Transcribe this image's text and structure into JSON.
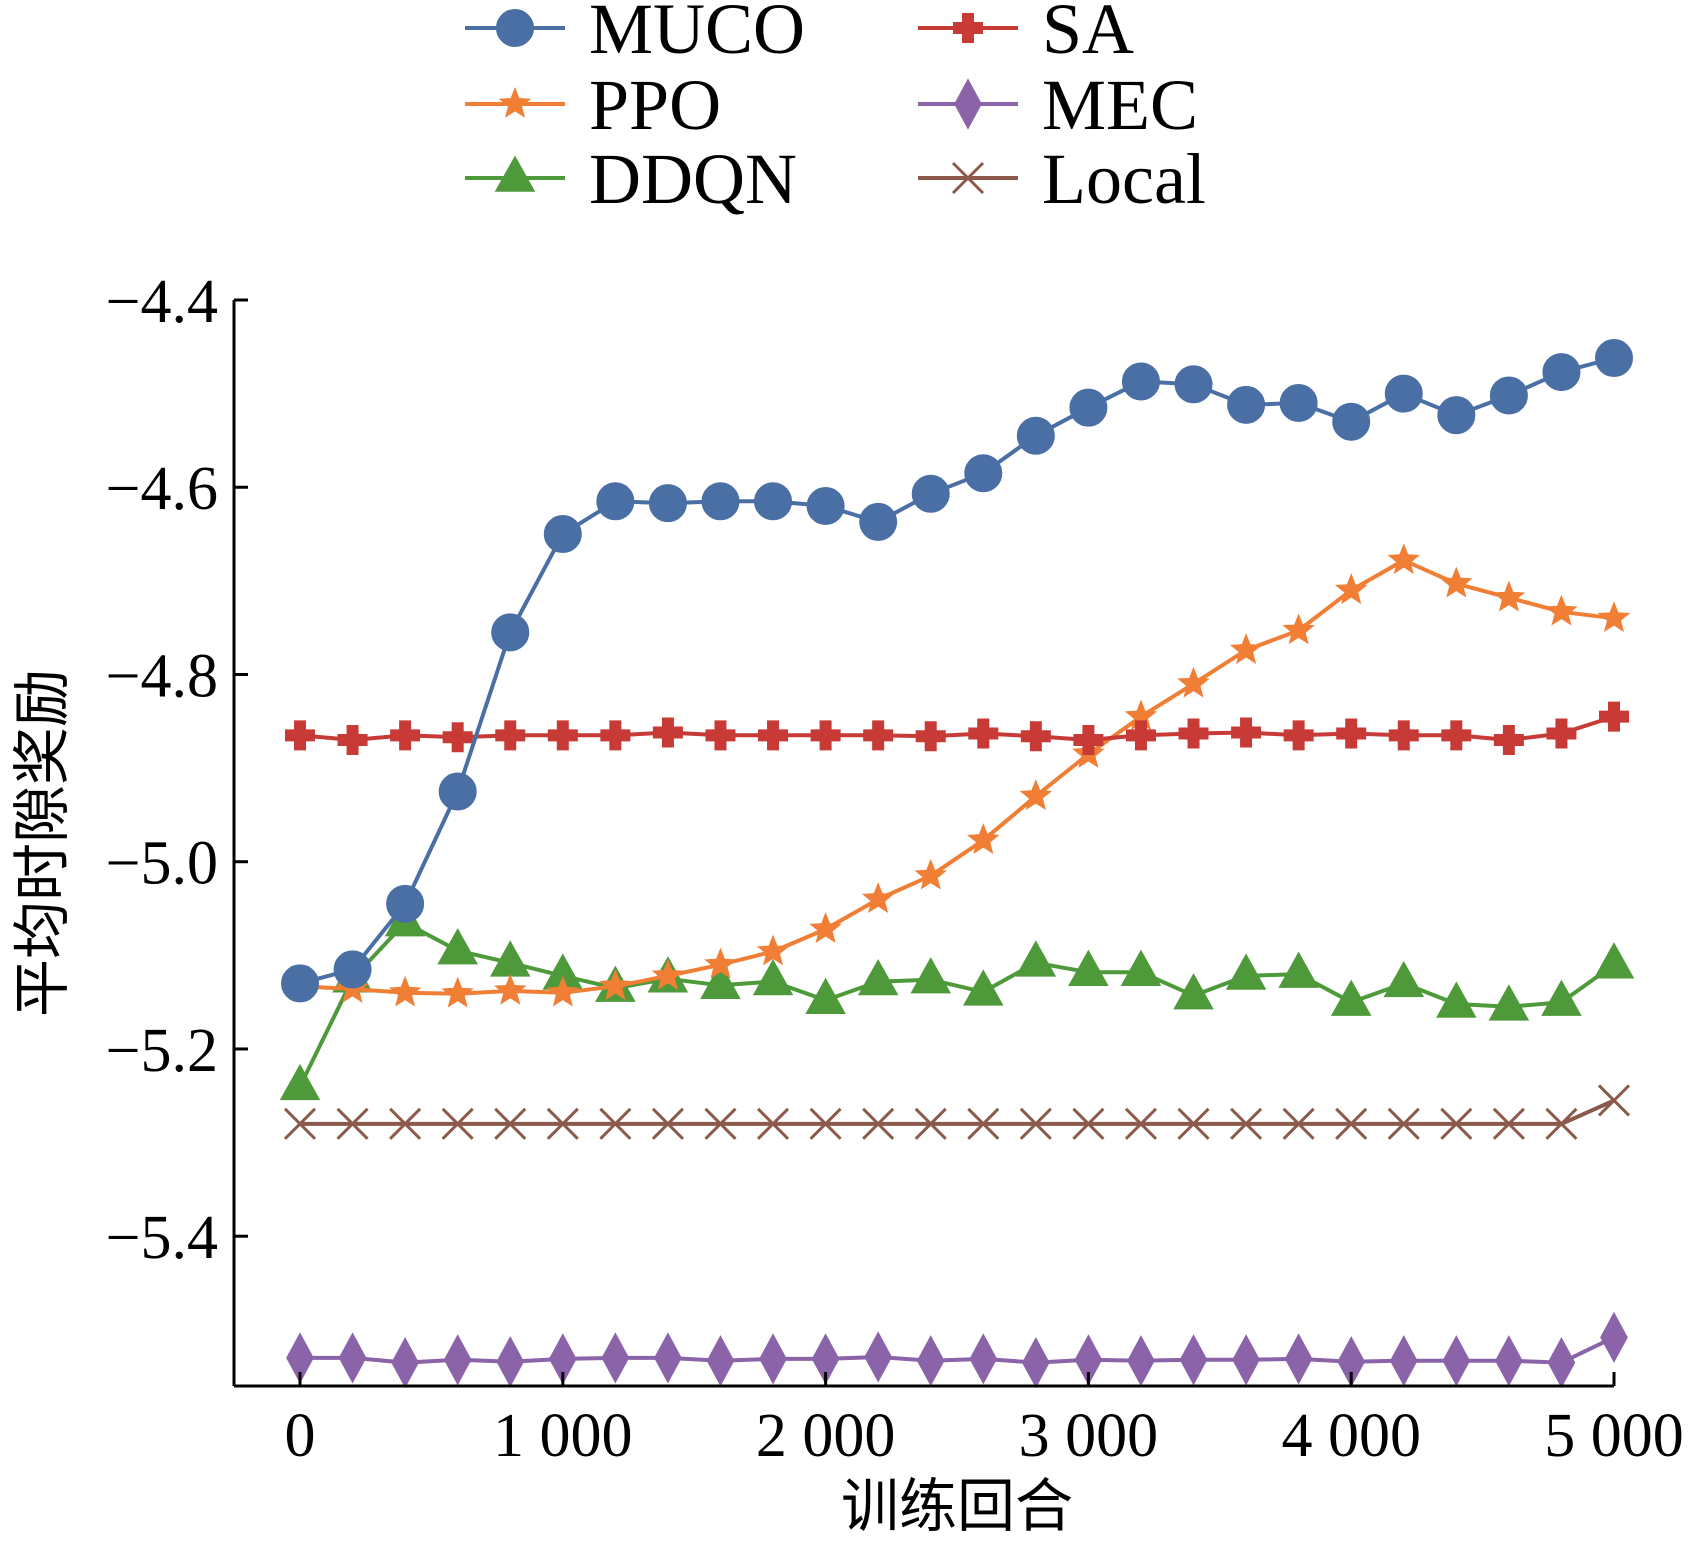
{
  "chart_data": {
    "type": "line",
    "title": "",
    "xlabel": "训练回合",
    "ylabel": "平均时隙奖励",
    "xlim": [
      0,
      5000
    ],
    "ylim": [
      -5.56,
      -4.4
    ],
    "xticks": [
      0,
      1000,
      2000,
      3000,
      4000,
      5000
    ],
    "xtick_labels": [
      "0",
      "1 000",
      "2 000",
      "3 000",
      "4 000",
      "5 000"
    ],
    "yticks": [
      -4.4,
      -4.6,
      -4.8,
      -5.0,
      -5.2,
      -5.4
    ],
    "ytick_labels": [
      "−4.4",
      "−4.6",
      "−4.8",
      "−5.0",
      "−5.2",
      "−5.4"
    ],
    "grid": false,
    "legend_position": "top",
    "x": [
      0,
      200,
      400,
      600,
      800,
      1000,
      1200,
      1400,
      1600,
      1800,
      2000,
      2200,
      2400,
      2600,
      2800,
      3000,
      3200,
      3400,
      3600,
      3800,
      4000,
      4200,
      4400,
      4600,
      4800,
      5000
    ],
    "series": [
      {
        "name": "MUCO",
        "color": "#4a6fa5",
        "marker": "circle",
        "values": [
          -5.13,
          -5.115,
          -5.045,
          -4.925,
          -4.755,
          -4.65,
          -4.615,
          -4.617,
          -4.615,
          -4.615,
          -4.62,
          -4.637,
          -4.607,
          -4.585,
          -4.545,
          -4.515,
          -4.487,
          -4.49,
          -4.512,
          -4.51,
          -4.53,
          -4.5,
          -4.523,
          -4.502,
          -4.477,
          -4.462
        ]
      },
      {
        "name": "SA",
        "color": "#c73a36",
        "marker": "plus",
        "values": [
          -4.865,
          -4.87,
          -4.865,
          -4.867,
          -4.865,
          -4.865,
          -4.865,
          -4.862,
          -4.865,
          -4.865,
          -4.865,
          -4.865,
          -4.866,
          -4.863,
          -4.866,
          -4.87,
          -4.865,
          -4.863,
          -4.862,
          -4.865,
          -4.863,
          -4.865,
          -4.865,
          -4.87,
          -4.863,
          -4.845
        ]
      },
      {
        "name": "PPO",
        "color": "#f07e35",
        "marker": "star",
        "values": [
          -5.133,
          -5.136,
          -5.14,
          -5.141,
          -5.138,
          -5.14,
          -5.133,
          -5.122,
          -5.11,
          -5.096,
          -5.072,
          -5.04,
          -5.015,
          -4.977,
          -4.93,
          -4.885,
          -4.845,
          -4.81,
          -4.774,
          -4.753,
          -4.71,
          -4.678,
          -4.703,
          -4.718,
          -4.733,
          -4.74
        ]
      },
      {
        "name": "MEC",
        "color": "#8a63a8",
        "marker": "diamond",
        "values": [
          -5.53,
          -5.53,
          -5.535,
          -5.532,
          -5.534,
          -5.531,
          -5.53,
          -5.53,
          -5.533,
          -5.531,
          -5.531,
          -5.529,
          -5.533,
          -5.531,
          -5.535,
          -5.532,
          -5.533,
          -5.532,
          -5.532,
          -5.531,
          -5.534,
          -5.533,
          -5.533,
          -5.533,
          -5.535,
          -5.508
        ]
      },
      {
        "name": "DDQN",
        "color": "#4e9a3a",
        "marker": "triangle",
        "values": [
          -5.24,
          -5.125,
          -5.065,
          -5.095,
          -5.108,
          -5.122,
          -5.135,
          -5.125,
          -5.132,
          -5.128,
          -5.148,
          -5.128,
          -5.126,
          -5.139,
          -5.108,
          -5.118,
          -5.118,
          -5.143,
          -5.122,
          -5.12,
          -5.15,
          -5.13,
          -5.152,
          -5.155,
          -5.15,
          -5.11
        ]
      },
      {
        "name": "Local",
        "color": "#8b5a4a",
        "marker": "x",
        "values": [
          -5.28,
          -5.28,
          -5.28,
          -5.28,
          -5.28,
          -5.28,
          -5.28,
          -5.28,
          -5.28,
          -5.28,
          -5.28,
          -5.28,
          -5.28,
          -5.28,
          -5.28,
          -5.28,
          -5.28,
          -5.28,
          -5.28,
          -5.28,
          -5.28,
          -5.28,
          -5.28,
          -5.28,
          -5.28,
          -5.255
        ]
      }
    ]
  }
}
